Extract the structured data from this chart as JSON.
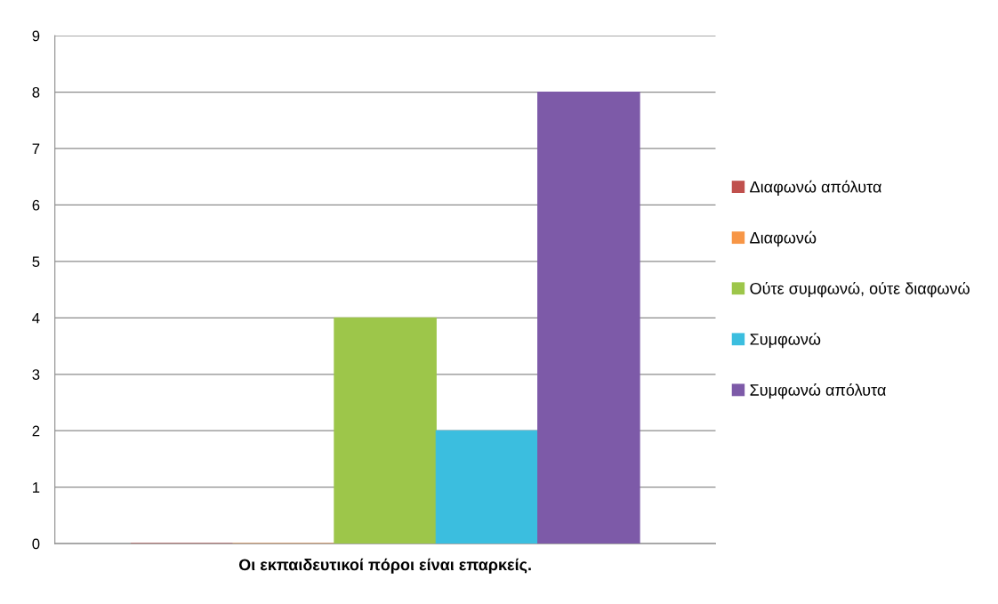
{
  "chart_data": {
    "type": "bar",
    "categories": [
      "Οι εκπαιδευτικοί πόροι είναι επαρκείς."
    ],
    "series": [
      {
        "name": "Διαφωνώ απόλυτα",
        "color": "#c0504d",
        "values": [
          0
        ]
      },
      {
        "name": "Διαφωνώ",
        "color": "#f79646",
        "values": [
          0
        ]
      },
      {
        "name": "Ούτε συμφωνώ, ούτε διαφωνώ",
        "color": "#9dc64a",
        "values": [
          4
        ]
      },
      {
        "name": "Συμφωνώ",
        "color": "#3bbedf",
        "values": [
          2
        ]
      },
      {
        "name": "Συμφωνώ απόλυτα",
        "color": "#7d5aa8",
        "values": [
          8
        ]
      }
    ],
    "ylim": [
      0,
      9
    ],
    "yticks": [
      0,
      1,
      2,
      3,
      4,
      5,
      6,
      7,
      8,
      9
    ],
    "grid": "y",
    "legend": "right"
  }
}
